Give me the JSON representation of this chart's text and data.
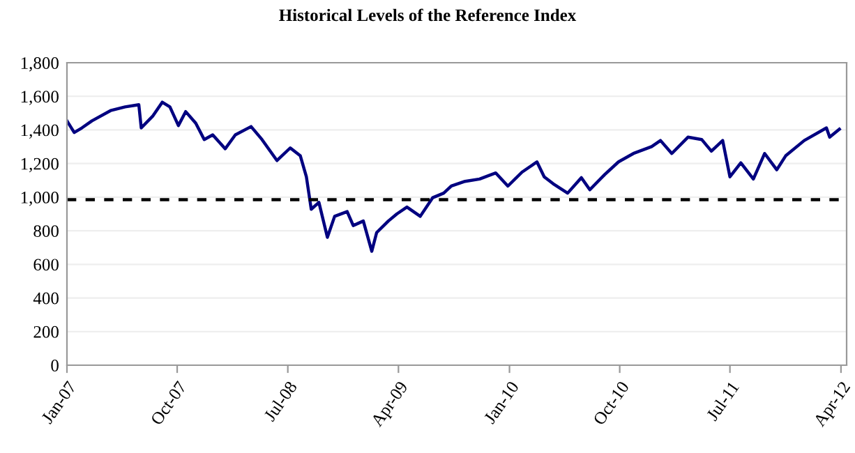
{
  "chart_data": {
    "type": "line",
    "title": "Historical Levels of the Reference Index",
    "x": [
      "2007-01-01",
      "2007-01-19",
      "2007-02-07",
      "2007-03-04",
      "2007-04-19",
      "2007-05-25",
      "2007-06-28",
      "2007-07-04",
      "2007-08-01",
      "2007-08-25",
      "2007-09-13",
      "2007-10-04",
      "2007-10-22",
      "2007-11-16",
      "2007-12-07",
      "2007-12-28",
      "2008-01-28",
      "2008-02-22",
      "2008-04-01",
      "2008-04-28",
      "2008-06-04",
      "2008-07-07",
      "2008-08-01",
      "2008-08-16",
      "2008-08-28",
      "2008-09-16",
      "2008-10-07",
      "2008-10-25",
      "2008-11-25",
      "2008-12-10",
      "2009-01-04",
      "2009-01-25",
      "2009-02-06",
      "2009-03-07",
      "2009-03-28",
      "2009-04-22",
      "2009-05-25",
      "2009-06-25",
      "2009-07-22",
      "2009-08-10",
      "2009-09-13",
      "2009-10-19",
      "2009-11-28",
      "2009-12-28",
      "2010-02-01",
      "2010-03-10",
      "2010-03-28",
      "2010-04-19",
      "2010-05-25",
      "2010-06-28",
      "2010-07-19",
      "2010-08-25",
      "2010-09-28",
      "2010-11-04",
      "2010-12-19",
      "2011-01-10",
      "2011-02-07",
      "2011-03-19",
      "2011-04-22",
      "2011-05-16",
      "2011-06-13",
      "2011-07-01",
      "2011-07-28",
      "2011-08-28",
      "2011-09-25",
      "2011-10-25",
      "2011-11-16",
      "2012-01-01",
      "2012-02-25",
      "2012-03-04",
      "2012-03-28"
    ],
    "series": [
      {
        "color": "#000080",
        "values": [
          1454,
          1385,
          1412,
          1454,
          1515,
          1537,
          1550,
          1412,
          1481,
          1565,
          1537,
          1426,
          1509,
          1440,
          1343,
          1371,
          1288,
          1371,
          1420,
          1343,
          1218,
          1293,
          1246,
          1121,
          928,
          969,
          761,
          886,
          914,
          831,
          858,
          678,
          789,
          858,
          900,
          941,
          886,
          997,
          1024,
          1066,
          1094,
          1108,
          1144,
          1066,
          1149,
          1210,
          1121,
          1080,
          1024,
          1116,
          1044,
          1135,
          1210,
          1260,
          1301,
          1337,
          1260,
          1357,
          1343,
          1274,
          1337,
          1121,
          1204,
          1108,
          1260,
          1163,
          1246,
          1337,
          1412,
          1357,
          1404
        ]
      }
    ],
    "xlim": [
      "2007-01-01",
      "2012-04-15"
    ],
    "xticks": [
      {
        "value": "2007-01-01",
        "label": "Jan-07"
      },
      {
        "value": "2007-10-01",
        "label": "Oct-07"
      },
      {
        "value": "2008-07-01",
        "label": "Jul-08"
      },
      {
        "value": "2009-04-01",
        "label": "Apr-09"
      },
      {
        "value": "2010-01-01",
        "label": "Jan-10"
      },
      {
        "value": "2010-10-01",
        "label": "Oct-10"
      },
      {
        "value": "2011-07-01",
        "label": "Jul-11"
      },
      {
        "value": "2012-04-01",
        "label": "Apr-12"
      }
    ],
    "ylim": [
      0,
      1800
    ],
    "yticks": [
      0,
      {
        "value": 200,
        "label": "200"
      },
      {
        "value": 400,
        "label": "400"
      },
      {
        "value": 600,
        "label": "600"
      },
      {
        "value": 800,
        "label": "800"
      },
      {
        "value": 1000,
        "label": "1,000"
      },
      {
        "value": 1200,
        "label": "1,200"
      },
      {
        "value": 1400,
        "label": "1,400"
      },
      {
        "value": 1600,
        "label": "1,600"
      },
      {
        "value": 1800,
        "label": "1,800"
      }
    ],
    "ref_lines": [
      {
        "axis": "y",
        "value": 985,
        "color": "#000000",
        "line_style": "dashed"
      }
    ],
    "grid": "y",
    "line_style": "solid"
  }
}
